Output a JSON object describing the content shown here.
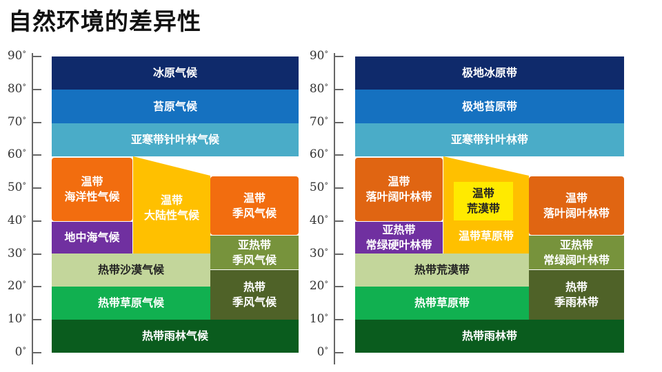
{
  "title": "自然环境的差异性",
  "axis": {
    "ticks": [
      {
        "value": 90,
        "text": "90"
      },
      {
        "value": 80,
        "text": "80"
      },
      {
        "value": 70,
        "text": "70"
      },
      {
        "value": 60,
        "text": "60"
      },
      {
        "value": 50,
        "text": "50"
      },
      {
        "value": 40,
        "text": "40"
      },
      {
        "value": 30,
        "text": "30"
      },
      {
        "value": 20,
        "text": "20"
      },
      {
        "value": 10,
        "text": "10"
      },
      {
        "value": 0,
        "text": "0"
      }
    ],
    "unit": "°"
  },
  "climate": {
    "ice_cap": "冰原气候",
    "tundra": "苔原气候",
    "subarctic": "亚寒带针叶林气候",
    "temperate_maritime": "温带\n海洋性气候",
    "mediterranean": "地中海气候",
    "temperate_continental": "温带\n大陆性气候",
    "temperate_monsoon": "温带\n季风气候",
    "subtropical_monsoon": "亚热带\n季风气候",
    "tropical_desert": "热带沙漠气候",
    "tropical_savanna": "热带草原气候",
    "tropical_monsoon": "热带\n季风气候",
    "tropical_rainforest": "热带雨林气候"
  },
  "vegetation": {
    "polar_ice": "极地冰原带",
    "polar_tundra": "极地苔原带",
    "subarctic_forest": "亚寒带针叶林带",
    "temperate_deciduous_west": "温带\n落叶阔叶林带",
    "subtropical_sclerophyll": "亚热带\n常绿硬叶林带",
    "temperate_desert": "温带\n荒漠带",
    "temperate_grassland": "温带草原带",
    "temperate_deciduous_east": "温带\n落叶阔叶林带",
    "subtropical_evergreen": "亚热带\n常绿阔叶林带",
    "tropical_desert": "热带荒漠带",
    "tropical_savanna": "热带草原带",
    "tropical_monsoon_forest": "热带\n季雨林带",
    "tropical_rainforest": "热带雨林带"
  },
  "colors": {
    "navy": "#0f2a6b",
    "blue": "#1571c0",
    "cyan": "#4aacc8",
    "orange": "#f26d0f",
    "orange_dark": "#e06512",
    "purple": "#7030a0",
    "amber": "#ffc000",
    "olive_green": "#77933c",
    "pale_green": "#c3d69b",
    "green": "#11b050",
    "dark_olive": "#4f6228",
    "forest_green": "#0a5c1e",
    "yellow": "#ffea00"
  }
}
